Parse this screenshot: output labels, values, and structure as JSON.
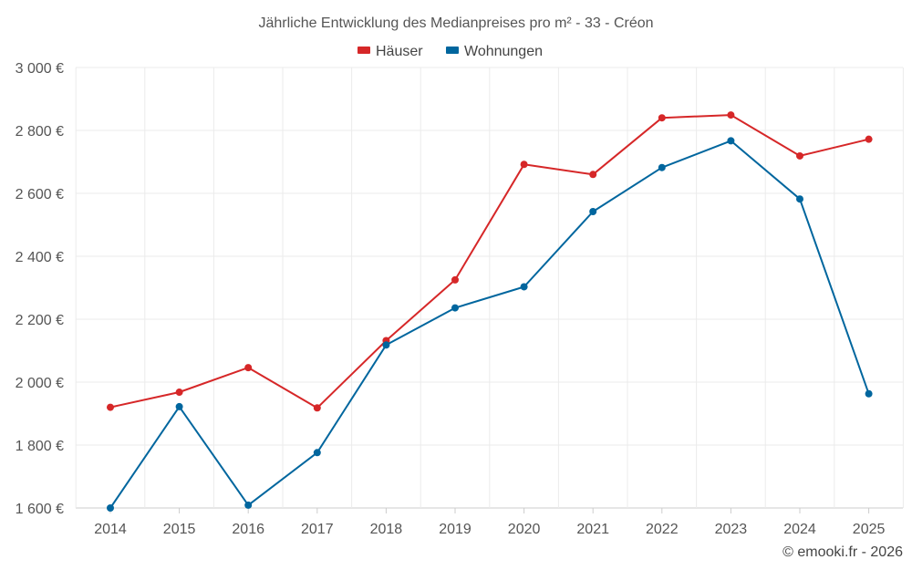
{
  "chart_data": {
    "type": "line",
    "title": "Jährliche Entwicklung des Medianpreises pro m² - 33 - Créon",
    "categories": [
      "2014",
      "2015",
      "2016",
      "2017",
      "2018",
      "2019",
      "2020",
      "2021",
      "2022",
      "2023",
      "2024",
      "2025"
    ],
    "series": [
      {
        "name": "Häuser",
        "color": "#d62728",
        "values": [
          1920,
          1968,
          2046,
          1918,
          2132,
          2325,
          2692,
          2660,
          2840,
          2849,
          2719,
          2772
        ]
      },
      {
        "name": "Wohnungen",
        "color": "#00669e",
        "values": [
          1600,
          1922,
          1609,
          1776,
          2118,
          2236,
          2303,
          2542,
          2682,
          2767,
          2582,
          1963
        ]
      }
    ],
    "ylim": [
      1600,
      3000
    ],
    "yticks": [
      1600,
      1800,
      2000,
      2200,
      2400,
      2600,
      2800,
      3000
    ],
    "ytick_labels": [
      "1 600 €",
      "1 800 €",
      "2 000 €",
      "2 200 €",
      "2 400 €",
      "2 600 €",
      "2 800 €",
      "3 000 €"
    ],
    "xlabel": "",
    "ylabel": "",
    "grid": true,
    "legend_position": "top-center"
  },
  "credit": "© emooki.fr - 2026"
}
